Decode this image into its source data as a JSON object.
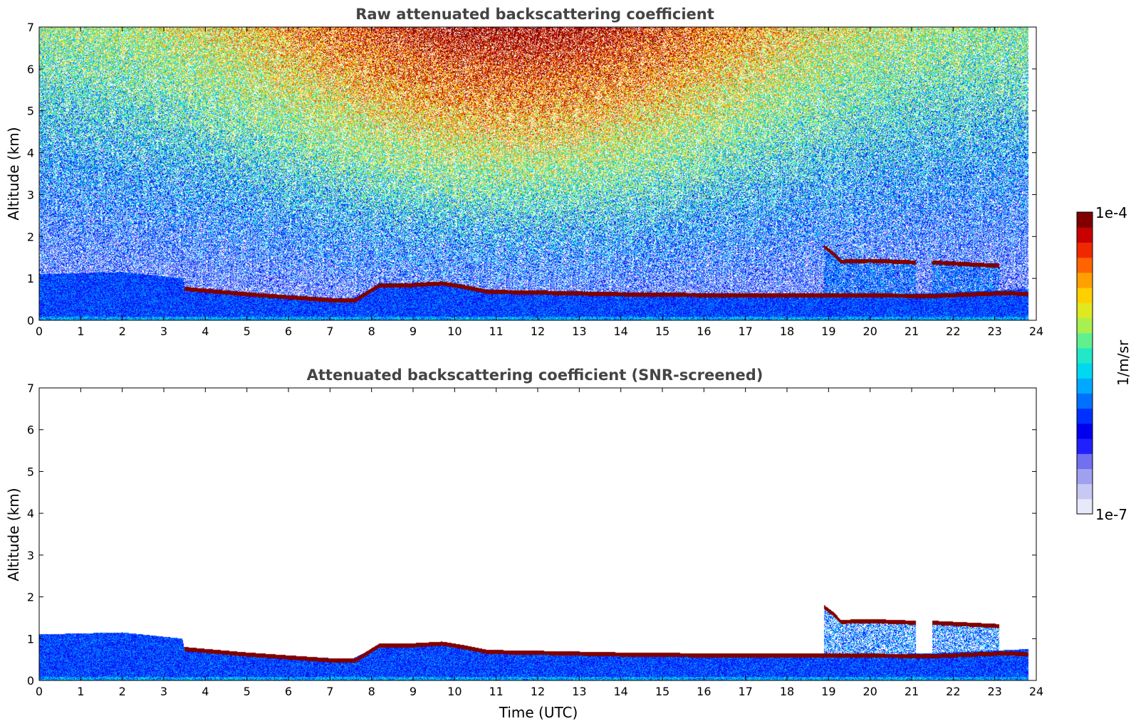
{
  "colorbar": {
    "max_label": "1e-4",
    "min_label": "1e-7",
    "unit": "1/m/sr",
    "colors": [
      "#e8e8fb",
      "#c8c8f4",
      "#a0a0f0",
      "#7070f0",
      "#2020ff",
      "#0000ee",
      "#0030ff",
      "#0070ff",
      "#00a8ff",
      "#00d8f0",
      "#20e8c8",
      "#60f090",
      "#a8f050",
      "#e0e820",
      "#ffd000",
      "#ffa000",
      "#ff6400",
      "#f02800",
      "#c80000",
      "#800000"
    ]
  },
  "chart_data": [
    {
      "type": "heatmap",
      "title": "Raw attenuated backscattering coefficient",
      "xlabel": "",
      "ylabel": "Altitude (km)",
      "xlim": [
        0,
        24
      ],
      "ylim": [
        0,
        7
      ],
      "x_ticks": [
        "0",
        "1",
        "2",
        "3",
        "4",
        "5",
        "6",
        "7",
        "8",
        "9",
        "10",
        "11",
        "12",
        "13",
        "14",
        "15",
        "16",
        "17",
        "18",
        "19",
        "20",
        "21",
        "22",
        "23",
        "24"
      ],
      "y_ticks": [
        "0",
        "1",
        "2",
        "3",
        "4",
        "5",
        "6",
        "7"
      ],
      "data_end_time": 23.8,
      "noise_background": true,
      "boundary_layer_top": [
        [
          0,
          1.1
        ],
        [
          2,
          1.15
        ],
        [
          3.45,
          1.0
        ],
        [
          3.5,
          0.75
        ],
        [
          6,
          0.6
        ],
        [
          7.5,
          0.5
        ],
        [
          8.2,
          0.85
        ],
        [
          10,
          0.85
        ],
        [
          11,
          0.65
        ],
        [
          18.9,
          0.6
        ],
        [
          21.5,
          0.65
        ],
        [
          23.8,
          0.75
        ]
      ],
      "cloud_layer": [
        [
          3.5,
          0.75
        ],
        [
          5,
          0.62
        ],
        [
          6,
          0.55
        ],
        [
          7,
          0.48
        ],
        [
          7.6,
          0.47
        ],
        [
          8.2,
          0.84
        ],
        [
          9,
          0.84
        ],
        [
          9.7,
          0.88
        ],
        [
          10.2,
          0.8
        ],
        [
          10.8,
          0.68
        ],
        [
          12,
          0.66
        ],
        [
          14,
          0.62
        ],
        [
          16,
          0.6
        ],
        [
          18,
          0.6
        ],
        [
          18.9,
          0.6
        ],
        [
          21.5,
          0.58
        ],
        [
          23.3,
          0.65
        ],
        [
          23.8,
          0.62
        ]
      ],
      "elevated_cloud": [
        [
          18.9,
          1.75
        ],
        [
          19.1,
          1.6
        ],
        [
          19.3,
          1.4
        ],
        [
          20,
          1.42
        ],
        [
          21.1,
          1.38
        ],
        [
          21.5,
          1.38
        ],
        [
          22.5,
          1.33
        ],
        [
          23.1,
          1.3
        ]
      ]
    },
    {
      "type": "heatmap",
      "title": "Attenuated backscattering coefficient (SNR-screened)",
      "xlabel": "Time (UTC)",
      "ylabel": "Altitude (km)",
      "xlim": [
        0,
        24
      ],
      "ylim": [
        0,
        7
      ],
      "x_ticks": [
        "0",
        "1",
        "2",
        "3",
        "4",
        "5",
        "6",
        "7",
        "8",
        "9",
        "10",
        "11",
        "12",
        "13",
        "14",
        "15",
        "16",
        "17",
        "18",
        "19",
        "20",
        "21",
        "22",
        "23",
        "24"
      ],
      "y_ticks": [
        "0",
        "1",
        "2",
        "3",
        "4",
        "5",
        "6",
        "7"
      ],
      "data_end_time": 23.8,
      "noise_background": false,
      "boundary_layer_top": [
        [
          0,
          1.1
        ],
        [
          2,
          1.15
        ],
        [
          3.45,
          1.0
        ],
        [
          3.5,
          0.75
        ],
        [
          6,
          0.6
        ],
        [
          7.5,
          0.5
        ],
        [
          8.2,
          0.85
        ],
        [
          10,
          0.85
        ],
        [
          11,
          0.65
        ],
        [
          18.9,
          0.6
        ],
        [
          21.5,
          0.65
        ],
        [
          23.8,
          0.75
        ]
      ],
      "cloud_layer": [
        [
          3.5,
          0.75
        ],
        [
          5,
          0.62
        ],
        [
          6,
          0.55
        ],
        [
          7,
          0.48
        ],
        [
          7.6,
          0.47
        ],
        [
          8.2,
          0.84
        ],
        [
          9,
          0.84
        ],
        [
          9.7,
          0.88
        ],
        [
          10.2,
          0.8
        ],
        [
          10.8,
          0.68
        ],
        [
          12,
          0.66
        ],
        [
          14,
          0.62
        ],
        [
          16,
          0.6
        ],
        [
          18,
          0.6
        ],
        [
          18.9,
          0.6
        ],
        [
          21.5,
          0.58
        ],
        [
          23.3,
          0.65
        ],
        [
          23.8,
          0.62
        ]
      ],
      "elevated_cloud": [
        [
          18.9,
          1.75
        ],
        [
          19.1,
          1.6
        ],
        [
          19.3,
          1.4
        ],
        [
          20,
          1.42
        ],
        [
          21.1,
          1.38
        ],
        [
          21.5,
          1.38
        ],
        [
          22.5,
          1.33
        ],
        [
          23.1,
          1.3
        ]
      ]
    }
  ]
}
